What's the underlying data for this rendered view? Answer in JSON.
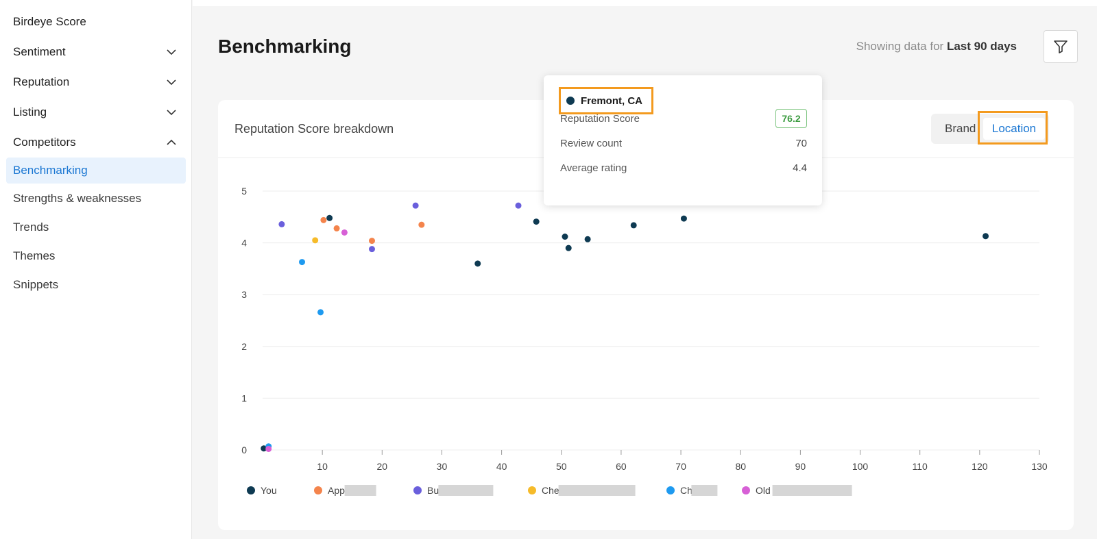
{
  "sidebar": {
    "items": [
      {
        "label": "Birdeye Score"
      },
      {
        "label": "Sentiment"
      },
      {
        "label": "Reputation"
      },
      {
        "label": "Listing"
      },
      {
        "label": "Competitors"
      }
    ],
    "sub_items": [
      {
        "label": "Benchmarking",
        "active": true
      },
      {
        "label": "Strengths & weaknesses"
      },
      {
        "label": "Trends"
      },
      {
        "label": "Themes"
      },
      {
        "label": "Snippets"
      }
    ]
  },
  "header": {
    "title": "Benchmarking",
    "showing_prefix": "Showing data for",
    "showing_period": "Last 90 days",
    "filter_icon": "filter-icon"
  },
  "card": {
    "title": "Reputation Score breakdown",
    "toggle": {
      "brand": "Brand",
      "location": "Location",
      "selected": "Location"
    }
  },
  "tooltip": {
    "location": "Fremont, CA",
    "rows": [
      {
        "label": "Reputation Score",
        "value": "76.2"
      },
      {
        "label": "Review count",
        "value": "70"
      },
      {
        "label": "Average rating",
        "value": "4.4"
      }
    ]
  },
  "colors": {
    "accent": "#1976d2",
    "highlight": "#f39a1e",
    "score_green": "#3a9b3f"
  },
  "chart_data": {
    "type": "scatter",
    "xlim": [
      0,
      130
    ],
    "ylim": [
      0,
      5
    ],
    "xticks": [
      "10",
      "20",
      "30",
      "40",
      "50",
      "60",
      "70",
      "80",
      "90",
      "100",
      "110",
      "120",
      "130"
    ],
    "yticks": [
      "0",
      "1",
      "2",
      "3",
      "4",
      "5"
    ],
    "grid": true,
    "legend_position": "bottom-left",
    "series": [
      {
        "name": "You",
        "color": "#0e3a52",
        "points": [
          [
            11.2,
            4.48
          ],
          [
            36,
            3.6
          ],
          [
            45.8,
            4.41
          ],
          [
            50.6,
            4.12
          ],
          [
            51.2,
            3.9
          ],
          [
            54.4,
            4.07
          ],
          [
            62.1,
            4.34
          ],
          [
            70.5,
            4.47
          ],
          [
            121,
            4.13
          ],
          [
            0.2,
            0.03
          ]
        ]
      },
      {
        "name": "App",
        "color": "#f4844c",
        "points": [
          [
            10.2,
            4.44
          ],
          [
            12.4,
            4.28
          ],
          [
            18.3,
            4.04
          ],
          [
            26.6,
            4.35
          ]
        ]
      },
      {
        "name": "Bu",
        "color": "#6a5fdc",
        "points": [
          [
            3.2,
            4.36
          ],
          [
            18.3,
            3.88
          ],
          [
            25.6,
            4.72
          ],
          [
            42.8,
            4.72
          ]
        ]
      },
      {
        "name": "Che",
        "color": "#f6bb2a",
        "points": [
          [
            8.8,
            4.05
          ]
        ]
      },
      {
        "name": "Ch",
        "color": "#1e9af0",
        "points": [
          [
            6.6,
            3.63
          ],
          [
            9.7,
            2.66
          ],
          [
            1.0,
            0.07
          ]
        ]
      },
      {
        "name": "Old",
        "color": "#d760d6",
        "points": [
          [
            13.7,
            4.2
          ],
          [
            1.0,
            0.02
          ]
        ]
      }
    ]
  }
}
